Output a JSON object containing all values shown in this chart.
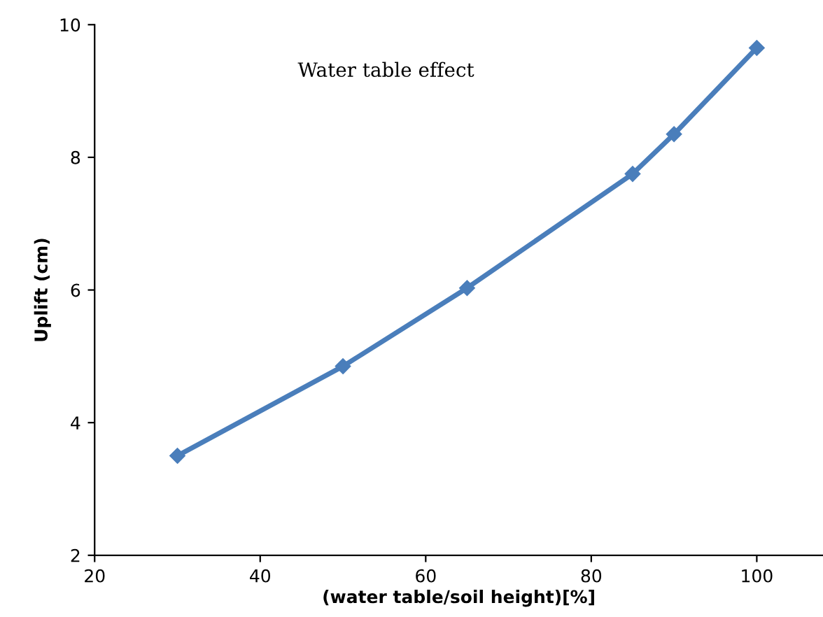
{
  "chart_data": {
    "type": "line",
    "title": "Water table effect",
    "xlabel": "(water table/soil height)[%]",
    "ylabel": "Uplift (cm)",
    "x": [
      30,
      50,
      65,
      85,
      90,
      100
    ],
    "series": [
      {
        "color": "#4a7ebb",
        "values": [
          3.5,
          4.85,
          6.03,
          7.75,
          8.35,
          9.65
        ]
      }
    ],
    "xlim": [
      20,
      108
    ],
    "xticks": [
      20,
      40,
      60,
      80,
      100
    ],
    "ylim": [
      2,
      10
    ],
    "yticks": [
      2,
      4,
      6,
      8,
      10
    ],
    "marker": "diamond",
    "line_style": "solid",
    "grid": false,
    "legend": false
  }
}
